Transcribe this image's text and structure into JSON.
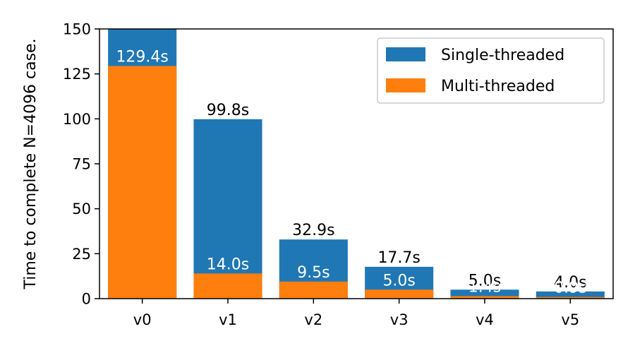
{
  "chart_data": {
    "type": "bar",
    "title": "",
    "xlabel": "",
    "ylabel": "Time to complete N=4096 case.",
    "categories": [
      "v0",
      "v1",
      "v2",
      "v3",
      "v4",
      "v5"
    ],
    "series": [
      {
        "name": "Single-threaded",
        "values": [
          150,
          99.8,
          32.9,
          17.7,
          5.0,
          4.0
        ],
        "labels": [
          "",
          "99.8s",
          "32.9s",
          "17.7s",
          "5.0s",
          "4.0s"
        ],
        "color": "#1f77b4"
      },
      {
        "name": "Multi-threaded",
        "values": [
          129.4,
          14.0,
          9.5,
          5.0,
          1.4,
          0.9
        ],
        "labels": [
          "129.4s",
          "14.0s",
          "9.5s",
          "5.0s",
          "1.4s",
          "0.9s"
        ],
        "color": "#ff7f0e"
      }
    ],
    "ylim": [
      0,
      150
    ],
    "yticks": [
      "0",
      "25",
      "50",
      "75",
      "100",
      "125",
      "150"
    ],
    "grid": false,
    "legend_position": "top-right",
    "overlay": true
  }
}
